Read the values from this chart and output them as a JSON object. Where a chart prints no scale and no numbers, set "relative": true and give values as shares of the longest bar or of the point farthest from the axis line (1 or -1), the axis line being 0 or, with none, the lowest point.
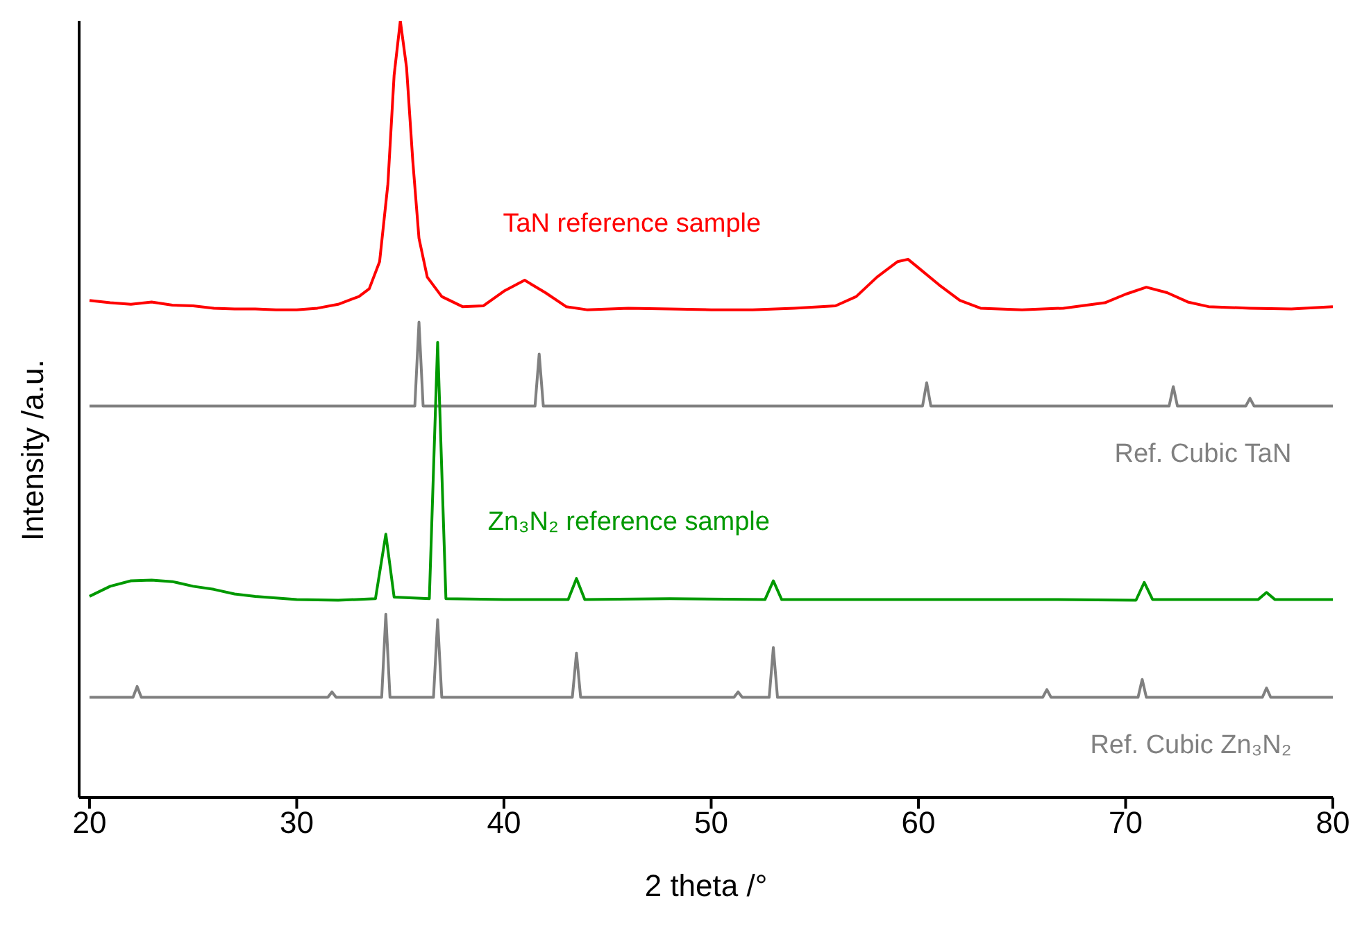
{
  "chart_data": {
    "type": "line",
    "relative": true,
    "xlabel": "2 theta /°",
    "ylabel": "Intensity /a.u.",
    "xlim": [
      19.5,
      80
    ],
    "xticks": [
      20,
      30,
      40,
      50,
      60,
      70,
      80
    ],
    "series": [
      {
        "name": "TaN reference sample",
        "color": "#ff0000",
        "x": [
          20,
          21,
          22,
          23,
          24,
          25,
          26,
          27,
          28,
          29,
          30,
          31,
          32,
          33,
          33.5,
          34,
          34.4,
          34.7,
          35.0,
          35.3,
          35.6,
          35.9,
          36.3,
          37,
          38,
          39,
          40,
          41,
          42,
          43,
          44,
          46,
          48,
          50,
          52,
          54,
          56,
          57,
          58,
          59,
          59.5,
          60,
          61,
          62,
          63,
          65,
          67,
          69,
          70,
          71,
          72,
          73,
          74,
          76,
          78,
          80
        ],
        "values": [
          0.64,
          0.637,
          0.635,
          0.638,
          0.634,
          0.633,
          0.63,
          0.629,
          0.629,
          0.628,
          0.628,
          0.63,
          0.635,
          0.645,
          0.655,
          0.69,
          0.79,
          0.93,
          1.0,
          0.94,
          0.82,
          0.72,
          0.67,
          0.645,
          0.632,
          0.633,
          0.652,
          0.666,
          0.65,
          0.632,
          0.628,
          0.63,
          0.629,
          0.628,
          0.628,
          0.63,
          0.633,
          0.645,
          0.67,
          0.69,
          0.693,
          0.682,
          0.66,
          0.64,
          0.63,
          0.628,
          0.63,
          0.637,
          0.648,
          0.657,
          0.65,
          0.638,
          0.632,
          0.63,
          0.629,
          0.632
        ]
      },
      {
        "name": "Ref. Cubic TaN",
        "color": "#808080",
        "x": [
          20,
          35.7,
          35.9,
          36.1,
          41.5,
          41.7,
          41.9,
          60.2,
          60.4,
          60.6,
          72.1,
          72.3,
          72.5,
          75.8,
          76,
          76.2,
          80
        ],
        "values": [
          0.504,
          0.504,
          0.612,
          0.504,
          0.504,
          0.571,
          0.504,
          0.504,
          0.534,
          0.504,
          0.504,
          0.529,
          0.504,
          0.504,
          0.514,
          0.504,
          0.504
        ]
      },
      {
        "name": "Zn₃N₂ reference sample",
        "color": "#009900",
        "x": [
          20,
          21,
          22,
          23,
          24,
          25,
          26,
          27,
          28,
          30,
          32,
          33.8,
          34.3,
          34.7,
          36.4,
          36.8,
          37.2,
          40,
          43.1,
          43.5,
          43.9,
          48,
          52.6,
          53.0,
          53.4,
          60,
          66,
          70.5,
          70.9,
          71.3,
          76.4,
          76.8,
          77.2,
          80
        ],
        "values": [
          0.259,
          0.272,
          0.279,
          0.28,
          0.278,
          0.272,
          0.268,
          0.262,
          0.259,
          0.255,
          0.254,
          0.256,
          0.339,
          0.258,
          0.256,
          0.586,
          0.256,
          0.255,
          0.255,
          0.282,
          0.255,
          0.256,
          0.255,
          0.279,
          0.255,
          0.255,
          0.255,
          0.254,
          0.277,
          0.255,
          0.255,
          0.264,
          0.255,
          0.255
        ]
      },
      {
        "name": "Ref. Cubic Zn₃N₂",
        "color": "#808080",
        "x": [
          20,
          22.1,
          22.3,
          22.5,
          31.5,
          31.7,
          31.9,
          34.1,
          34.3,
          34.5,
          36.6,
          36.8,
          37.0,
          43.3,
          43.5,
          43.7,
          51.1,
          51.3,
          51.5,
          52.8,
          53.0,
          53.2,
          66.0,
          66.2,
          66.4,
          70.6,
          70.8,
          71.0,
          76.6,
          76.8,
          77.0,
          80
        ],
        "values": [
          0.129,
          0.129,
          0.143,
          0.129,
          0.129,
          0.136,
          0.129,
          0.129,
          0.236,
          0.129,
          0.129,
          0.229,
          0.129,
          0.129,
          0.186,
          0.129,
          0.129,
          0.136,
          0.129,
          0.129,
          0.193,
          0.129,
          0.129,
          0.139,
          0.129,
          0.129,
          0.152,
          0.129,
          0.129,
          0.141,
          0.129,
          0.129
        ]
      }
    ]
  }
}
